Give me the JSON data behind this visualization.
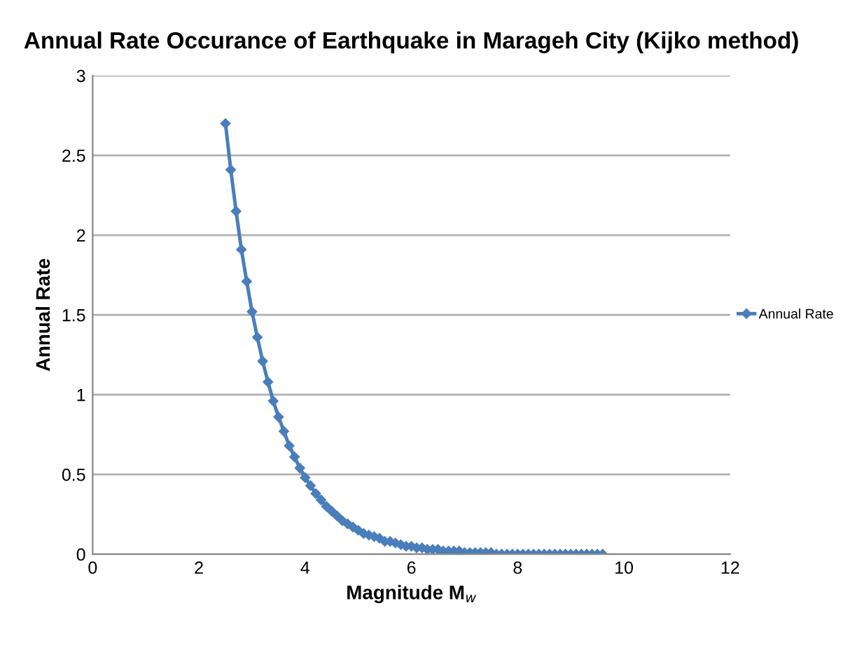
{
  "chart_data": {
    "type": "line",
    "title": "Annual Rate Occurance of Earthquake in Marageh City (Kijko method)",
    "xlabel": "Magnitude M$_{w}$",
    "ylabel": "Annual Rate",
    "x": [
      2.5,
      2.6,
      2.7,
      2.8,
      2.9,
      3.0,
      3.1,
      3.2,
      3.3,
      3.4,
      3.5,
      3.6,
      3.7,
      3.8,
      3.9,
      4.0,
      4.1,
      4.2,
      4.3,
      4.4,
      4.5,
      4.6,
      4.7,
      4.8,
      4.9,
      5.0,
      5.1,
      5.2,
      5.3,
      5.4,
      5.5,
      5.6,
      5.7,
      5.8,
      5.9,
      6.0,
      6.1,
      6.2,
      6.3,
      6.4,
      6.5,
      6.6,
      6.7,
      6.8,
      6.9,
      7.0,
      7.1,
      7.2,
      7.3,
      7.4,
      7.5,
      7.6,
      7.7,
      7.8,
      7.9,
      8.0,
      8.1,
      8.2,
      8.3,
      8.4,
      8.5,
      8.6,
      8.7,
      8.8,
      8.9,
      9.0,
      9.1,
      9.2,
      9.3,
      9.4,
      9.5,
      9.6
    ],
    "series": [
      {
        "name": "Annual Rate",
        "color": "#4a7ebb",
        "values": [
          2.7,
          2.41,
          2.15,
          1.91,
          1.71,
          1.52,
          1.36,
          1.21,
          1.08,
          0.96,
          0.86,
          0.77,
          0.68,
          0.61,
          0.54,
          0.48,
          0.43,
          0.38,
          0.34,
          0.3,
          0.27,
          0.24,
          0.21,
          0.19,
          0.17,
          0.15,
          0.13,
          0.12,
          0.11,
          0.1,
          0.08,
          0.08,
          0.07,
          0.06,
          0.05,
          0.05,
          0.04,
          0.04,
          0.03,
          0.03,
          0.03,
          0.02,
          0.02,
          0.02,
          0.02,
          0.01,
          0.01,
          0.01,
          0.01,
          0.01,
          0.01,
          0,
          0,
          0,
          0,
          0,
          0,
          0,
          0,
          0,
          0,
          0,
          0,
          0,
          0,
          0,
          0,
          0,
          0,
          0,
          0,
          0
        ]
      }
    ],
    "xlim": [
      0,
      12
    ],
    "xticks": [
      0,
      2,
      4,
      6,
      8,
      10,
      12
    ],
    "ylim": [
      0,
      3
    ],
    "yticks": [
      0,
      0.5,
      1,
      1.5,
      2,
      2.5,
      3
    ],
    "grid": "y",
    "legend": "right",
    "marker": "diamond",
    "line_style": "solid"
  }
}
